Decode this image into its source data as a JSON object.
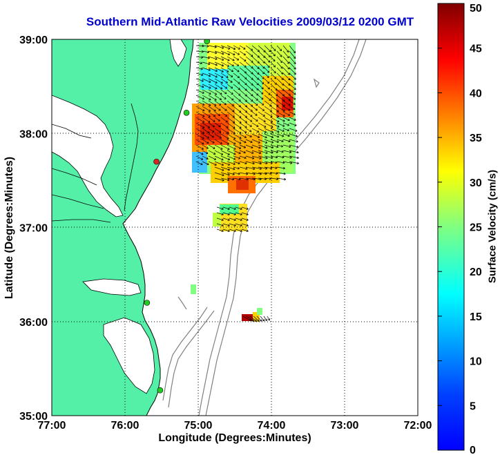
{
  "title": "Southern Mid-Atlantic Raw Velocities 2009/03/12 0200 GMT",
  "xlabel": "Longitude (Degrees:Minutes)",
  "ylabel": "Latitude (Degrees:Minutes)",
  "map": {
    "x_ticks": [
      "77:00",
      "76:00",
      "75:00",
      "74:00",
      "73:00",
      "72:00"
    ],
    "y_ticks": [
      "39:00",
      "38:00",
      "37:00",
      "36:00",
      "35:00"
    ],
    "lon_range": [
      -77,
      -72
    ],
    "lat_range": [
      35,
      39
    ],
    "land_color": "#55f0a8",
    "coastline_color": "#000000",
    "bathymetry_color": "#808080",
    "grid": "dotted"
  },
  "colorbar": {
    "label": "Surface Velocity (cm/s)",
    "ticks": [
      "0",
      "5",
      "10",
      "15",
      "20",
      "25",
      "30",
      "35",
      "40",
      "45",
      "50"
    ],
    "range": [
      0,
      50
    ],
    "colormap": "jet"
  },
  "stations": [
    {
      "lon": -74.88,
      "lat": 38.98,
      "color": "#22cc22"
    },
    {
      "lon": -75.16,
      "lat": 38.22,
      "color": "#22cc22"
    },
    {
      "lon": -75.57,
      "lat": 37.7,
      "color": "#dd2222"
    },
    {
      "lon": -75.7,
      "lat": 36.2,
      "color": "#22cc22"
    },
    {
      "lon": -75.52,
      "lat": 35.27,
      "color": "#22cc22"
    }
  ],
  "arrow_glyph_color": "#000000"
}
